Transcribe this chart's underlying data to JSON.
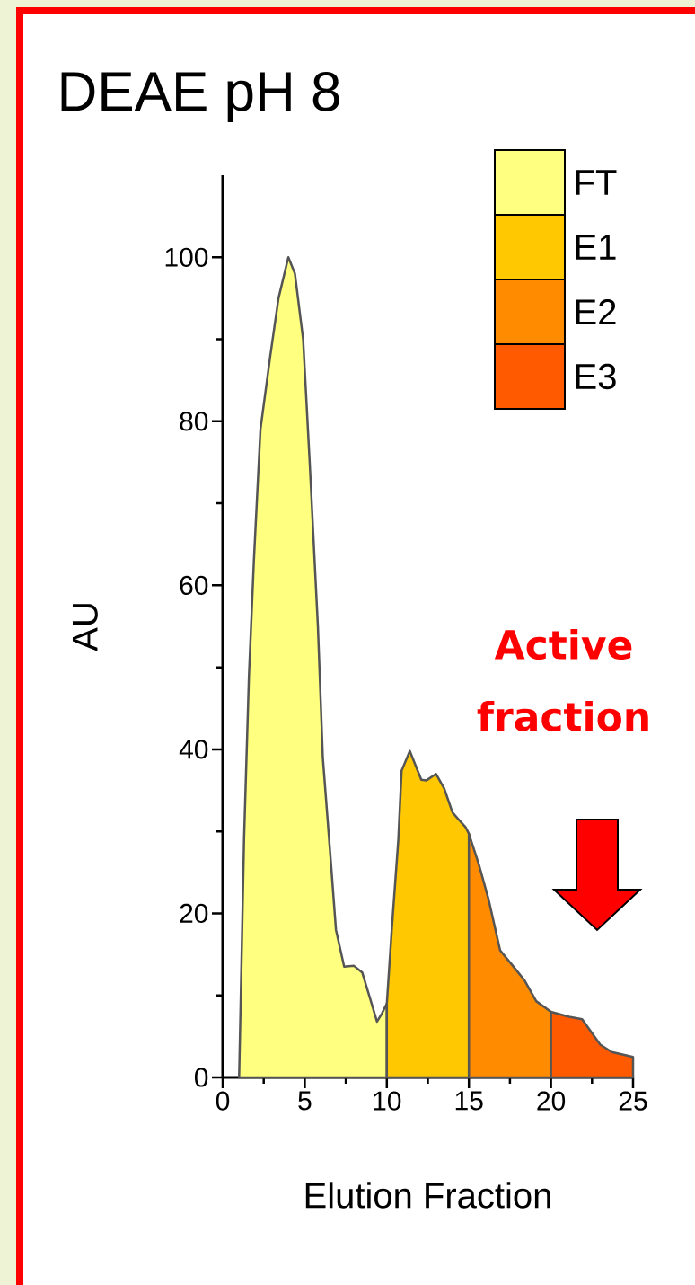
{
  "chart_data": {
    "type": "area",
    "title": "DEAE pH 8",
    "xlabel": "Elution Fraction",
    "ylabel": "AU",
    "annotations": [
      "Active fraction"
    ],
    "xlim": [
      0,
      25
    ],
    "ylim": [
      0,
      110
    ],
    "xticks": [
      0,
      5,
      10,
      15,
      20,
      25
    ],
    "yticks": [
      0,
      20,
      40,
      60,
      80,
      100
    ],
    "legend": "top right",
    "grid": false,
    "series": [
      {
        "name": "FT",
        "color": "#ffff80",
        "x": [
          1,
          1.3,
          1.6,
          1.9,
          2.3,
          2.9,
          3.4,
          4,
          4.4,
          4.9,
          5.3,
          5.8,
          6.1,
          6.6,
          6.9,
          7.4,
          8,
          8.5,
          9,
          9.4,
          9.7,
          10
        ],
        "values": [
          0,
          29,
          49,
          63,
          79,
          88,
          95,
          100,
          98,
          90,
          75,
          55,
          39,
          26,
          18,
          13.5,
          13.6,
          12.8,
          9.5,
          6.8,
          7.8,
          9
        ]
      },
      {
        "name": "E1",
        "color": "#ffc800",
        "x": [
          10,
          10.3,
          10.7,
          10.9,
          11.4,
          12.1,
          12.4,
          13,
          13.5,
          14,
          14.8,
          15
        ],
        "values": [
          9,
          18,
          29,
          37.4,
          39.8,
          36.3,
          36.2,
          37,
          35.2,
          32.3,
          30.5,
          29.7
        ]
      },
      {
        "name": "E2",
        "color": "#ff8c00",
        "x": [
          15,
          15.6,
          16.2,
          16.9,
          17.8,
          18.4,
          19.1,
          20
        ],
        "values": [
          29.7,
          26,
          21.7,
          15.5,
          13.3,
          11.8,
          9.3,
          8
        ]
      },
      {
        "name": "E3",
        "color": "#ff5a00",
        "x": [
          20,
          21.1,
          21.9,
          23,
          23.7,
          25
        ],
        "values": [
          8,
          7.4,
          7.1,
          4,
          3.1,
          2.5
        ]
      }
    ]
  }
}
